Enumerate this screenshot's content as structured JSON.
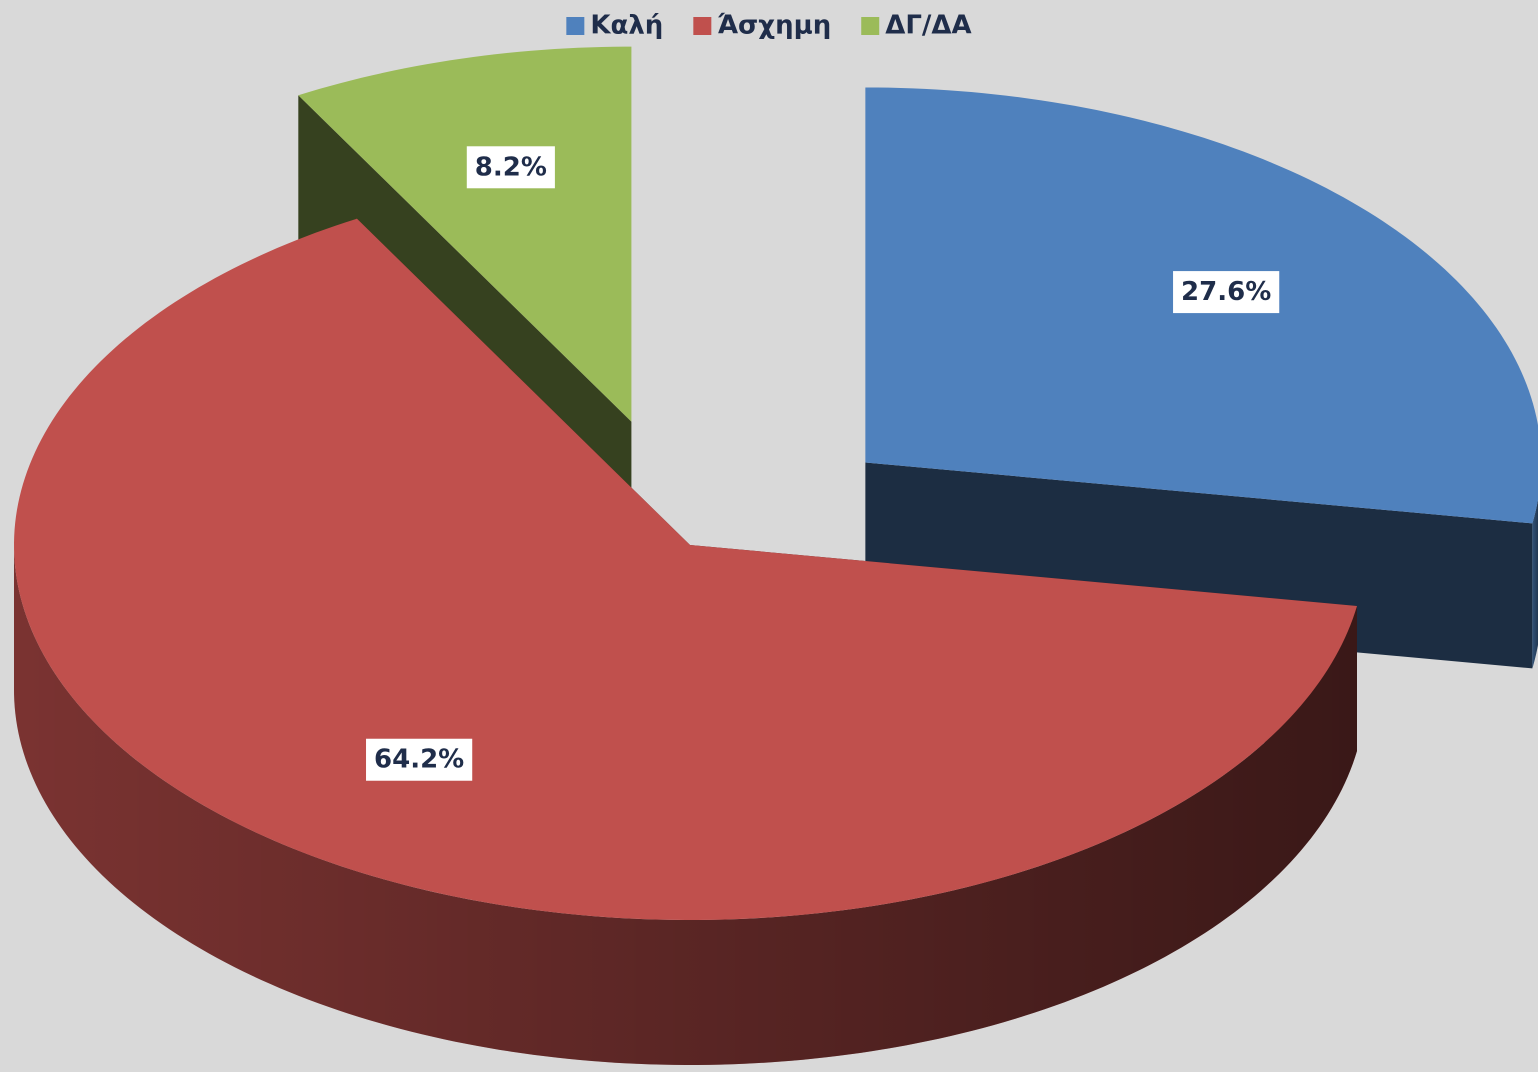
{
  "chart_data": {
    "type": "pie",
    "categories": [
      "Καλή",
      "Άσχημη",
      "ΔΓ/ΔΑ"
    ],
    "values": [
      27.6,
      64.2,
      8.2
    ],
    "value_labels": [
      "27.6%",
      "64.2%",
      "8.2%"
    ],
    "colors": [
      "#4f81bd",
      "#c0504d",
      "#9bbb59"
    ],
    "legend": "top",
    "exploded": true
  }
}
